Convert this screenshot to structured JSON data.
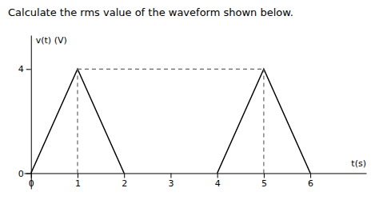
{
  "chart_data": {
    "type": "line",
    "title": "Calculate the rms value of the waveform shown below.",
    "xlabel": "t(s)",
    "ylabel": "v(t) (V)",
    "xlim": [
      -0.15,
      7.2
    ],
    "ylim": [
      -0.6,
      5.3
    ],
    "xticks": [
      0,
      1,
      2,
      3,
      4,
      5,
      6
    ],
    "yticks": [
      0,
      4
    ],
    "grid": false,
    "series": [
      {
        "x": [
          0,
          1,
          2
        ],
        "values": [
          0,
          4,
          0
        ],
        "color": "#000000",
        "line_style": "solid"
      },
      {
        "x": [
          4,
          5,
          6
        ],
        "values": [
          0,
          4,
          0
        ],
        "color": "#000000",
        "line_style": "solid"
      },
      {
        "x": [
          1,
          5
        ],
        "values": [
          4,
          4
        ],
        "color": "#666666",
        "line_style": "dashed"
      },
      {
        "x": [
          1,
          1
        ],
        "values": [
          0,
          4
        ],
        "color": "#666666",
        "line_style": "dashed"
      },
      {
        "x": [
          5,
          5
        ],
        "values": [
          0,
          4
        ],
        "color": "#666666",
        "line_style": "dashed"
      }
    ]
  }
}
